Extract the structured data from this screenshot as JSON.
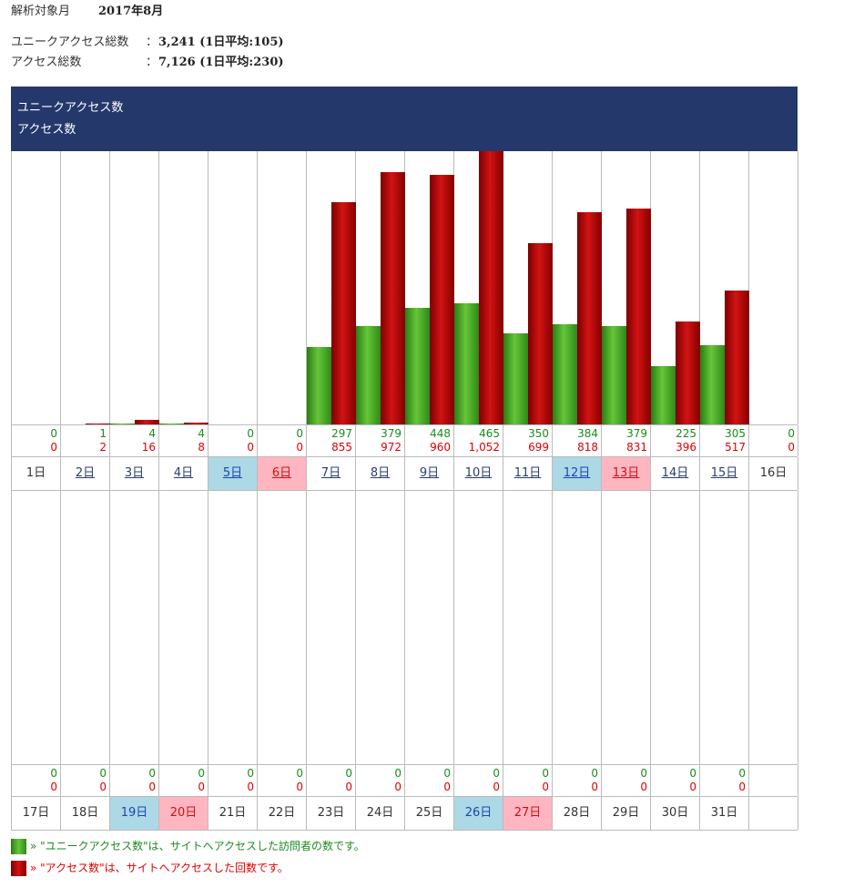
{
  "summary": {
    "period_label": "解析対象月",
    "period_value": "2017年8月",
    "unique_label": "ユニークアクセス総数",
    "unique_value": "3,241 (1日平均:105)",
    "access_label": "アクセス総数",
    "access_value": "7,126 (1日平均:230)",
    "colon": "："
  },
  "header": {
    "line1": "ユニークアクセス数",
    "line2": "アクセス数"
  },
  "colors": {
    "unique": "#3f9e22",
    "access": "#b30000",
    "header_bg": "#24386b",
    "saturday_bg": "#add8e6",
    "sunday_bg": "#ffb6c1"
  },
  "chart_data": {
    "type": "bar",
    "title": "2017年8月",
    "series": [
      {
        "name": "ユニークアクセス数",
        "values": [
          0,
          1,
          4,
          4,
          0,
          0,
          297,
          379,
          448,
          465,
          350,
          384,
          379,
          225,
          305,
          0,
          0,
          0,
          0,
          0,
          0,
          0,
          0,
          0,
          0,
          0,
          0,
          0,
          0,
          0,
          0
        ]
      },
      {
        "name": "アクセス数",
        "values": [
          0,
          2,
          16,
          8,
          0,
          0,
          855,
          972,
          960,
          1052,
          699,
          818,
          831,
          396,
          517,
          0,
          0,
          0,
          0,
          0,
          0,
          0,
          0,
          0,
          0,
          0,
          0,
          0,
          0,
          0,
          0
        ]
      }
    ],
    "categories": [
      "1日",
      "2日",
      "3日",
      "4日",
      "5日",
      "6日",
      "7日",
      "8日",
      "9日",
      "10日",
      "11日",
      "12日",
      "13日",
      "14日",
      "15日",
      "16日",
      "17日",
      "18日",
      "19日",
      "20日",
      "21日",
      "22日",
      "23日",
      "24日",
      "25日",
      "26日",
      "27日",
      "28日",
      "29日",
      "30日",
      "31日"
    ],
    "unique_labels": [
      "0",
      "1",
      "4",
      "4",
      "0",
      "0",
      "297",
      "379",
      "448",
      "465",
      "350",
      "384",
      "379",
      "225",
      "305",
      "0",
      "0",
      "0",
      "0",
      "0",
      "0",
      "0",
      "0",
      "0",
      "0",
      "0",
      "0",
      "0",
      "0",
      "0",
      "0"
    ],
    "access_labels": [
      "0",
      "2",
      "16",
      "8",
      "0",
      "0",
      "855",
      "972",
      "960",
      "1,052",
      "699",
      "818",
      "831",
      "396",
      "517",
      "0",
      "0",
      "0",
      "0",
      "0",
      "0",
      "0",
      "0",
      "0",
      "0",
      "0",
      "0",
      "0",
      "0",
      "0",
      "0"
    ],
    "day_types": [
      "",
      "",
      "",
      "",
      "sat",
      "sun",
      "",
      "",
      "",
      "",
      "",
      "sat",
      "sun",
      "",
      "",
      "",
      "",
      "",
      "sat",
      "sun",
      "",
      "",
      "",
      "",
      "",
      "sat",
      "sun",
      "",
      "",
      "",
      ""
    ],
    "linked": [
      false,
      true,
      true,
      true,
      true,
      true,
      true,
      true,
      true,
      true,
      true,
      true,
      true,
      true,
      true,
      false,
      false,
      false,
      false,
      false,
      false,
      false,
      false,
      false,
      false,
      false,
      false,
      false,
      false,
      false,
      false
    ],
    "ymax": 1052,
    "weeks": [
      [
        0,
        15
      ],
      [
        16,
        30
      ]
    ],
    "legend": "none"
  },
  "legend": {
    "unique_text": "» \"ユニークアクセス数\"は、サイトへアクセスした訪問者の数です。",
    "access_text": "» \"アクセス数\"は、サイトへアクセスした回数です。"
  }
}
